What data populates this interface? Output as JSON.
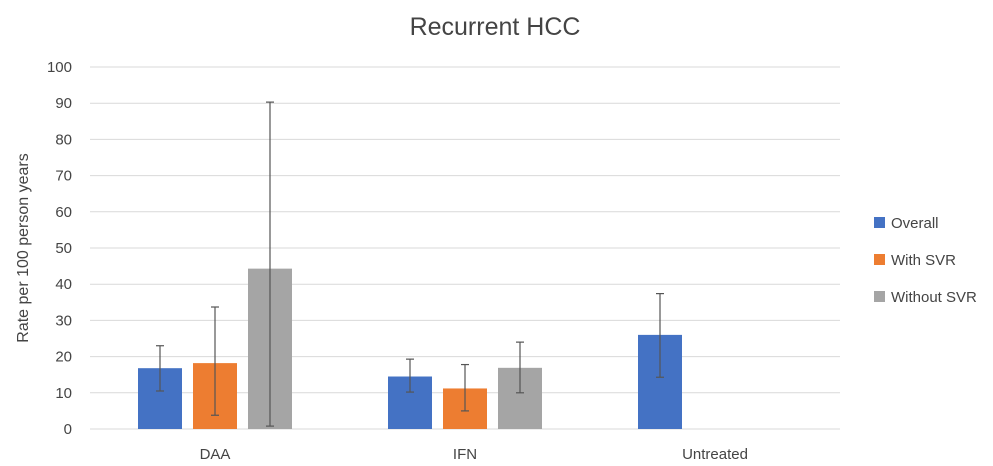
{
  "chart_data": {
    "type": "bar",
    "title": "Recurrent HCC",
    "xlabel": "",
    "ylabel": "Rate per 100 person years",
    "ylim": [
      0,
      100
    ],
    "yticks": [
      0,
      10,
      20,
      30,
      40,
      50,
      60,
      70,
      80,
      90,
      100
    ],
    "categories": [
      "DAA",
      "IFN",
      "Untreated"
    ],
    "series": [
      {
        "name": "Overall",
        "color": "#4472c4",
        "values": [
          16.8,
          14.5,
          26.0
        ],
        "error_low": [
          10.5,
          10.2,
          14.3
        ],
        "error_high": [
          23.0,
          19.3,
          37.4
        ]
      },
      {
        "name": "With SVR",
        "color": "#ed7d31",
        "values": [
          18.2,
          11.2,
          null
        ],
        "error_low": [
          3.8,
          5.0,
          null
        ],
        "error_high": [
          33.7,
          17.8,
          null
        ]
      },
      {
        "name": "Without SVR",
        "color": "#a5a5a5",
        "values": [
          44.3,
          16.9,
          null
        ],
        "error_low": [
          0.8,
          10.0,
          null
        ],
        "error_high": [
          90.3,
          24.0,
          null
        ]
      }
    ],
    "grid": true,
    "legend_position": "right"
  }
}
